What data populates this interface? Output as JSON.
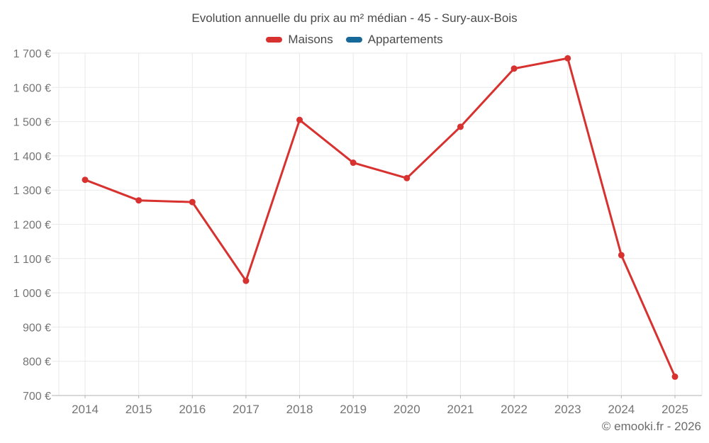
{
  "chart_data": {
    "type": "line",
    "title": "Evolution annuelle du prix au m² médian - 45 - Sury-aux-Bois",
    "categories": [
      "2014",
      "2015",
      "2016",
      "2017",
      "2018",
      "2019",
      "2020",
      "2021",
      "2022",
      "2023",
      "2024",
      "2025"
    ],
    "series": [
      {
        "name": "Maisons",
        "color": "#d7322f",
        "values": [
          1330,
          1270,
          1265,
          1035,
          1505,
          1380,
          1335,
          1485,
          1655,
          1685,
          1110,
          755
        ]
      },
      {
        "name": "Appartements",
        "color": "#17699a",
        "values": []
      }
    ],
    "ylim": [
      700,
      1700
    ],
    "ytick_step": 100,
    "ytick_labels": [
      "700 €",
      "800 €",
      "900 €",
      "1 000 €",
      "1 100 €",
      "1 200 €",
      "1 300 €",
      "1 400 €",
      "1 500 €",
      "1 600 €",
      "1 700 €"
    ],
    "xlabel": "",
    "ylabel": "",
    "grid": true,
    "legend_position": "top",
    "colors": {
      "title_text": "#4a4a4a",
      "tick_text": "#757575",
      "gridline": "#e9e9e9",
      "axis_line": "#b3b3b3"
    },
    "footer": "© emooki.fr - 2026"
  }
}
